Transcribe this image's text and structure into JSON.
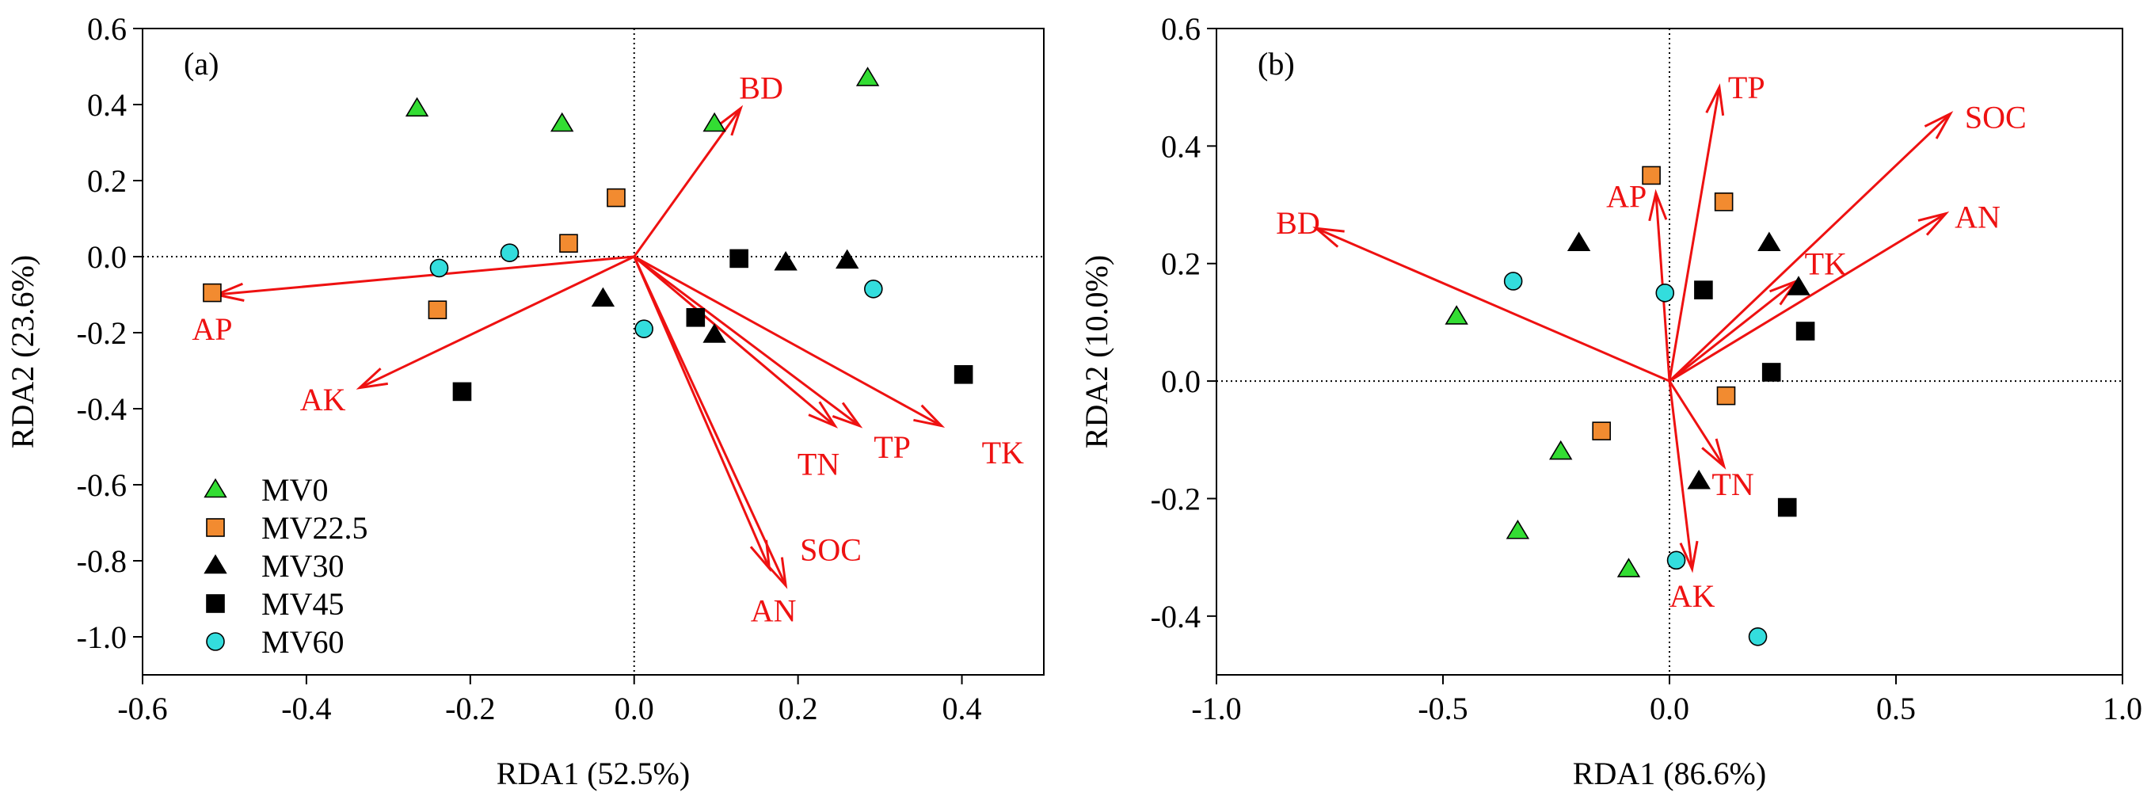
{
  "chart_data": [
    {
      "type": "scatter",
      "panel_label": "(a)",
      "xlabel": "RDA1 (52.5%)",
      "ylabel": "RDA2 (23.6%)",
      "xlim": [
        -0.6,
        0.5
      ],
      "ylim": [
        -1.1,
        0.6
      ],
      "xticks": [
        -0.6,
        -0.4,
        -0.2,
        0.0,
        0.2,
        0.4
      ],
      "yticks": [
        0.6,
        0.4,
        0.2,
        0.0,
        -0.2,
        -0.4,
        -0.6,
        -0.8,
        -1.0
      ],
      "xtick_labels": [
        "-0.6",
        "-0.4",
        "-0.2",
        "0.0",
        "0.2",
        "0.4"
      ],
      "ytick_labels": [
        "0.6",
        "0.4",
        "0.2",
        "0.0",
        "-0.2",
        "-0.4",
        "-0.6",
        "-0.8",
        "-1.0"
      ],
      "grid": false,
      "reference_lines": "dotted lines at x=0 and y=0",
      "legend_position": "bottom-left",
      "series": [
        {
          "name": "MV0",
          "marker": "triangle",
          "color": "#33dd33",
          "points": [
            [
              -0.265,
              0.39
            ],
            [
              -0.088,
              0.35
            ],
            [
              0.098,
              0.35
            ],
            [
              0.285,
              0.47
            ]
          ]
        },
        {
          "name": "MV22.5",
          "marker": "square",
          "color": "#f28b30",
          "points": [
            [
              -0.022,
              0.155
            ],
            [
              -0.08,
              0.035
            ],
            [
              -0.515,
              -0.095
            ],
            [
              -0.24,
              -0.14
            ]
          ]
        },
        {
          "name": "MV30",
          "marker": "triangle",
          "color": "#000000",
          "points": [
            [
              -0.038,
              -0.11
            ],
            [
              0.185,
              -0.015
            ],
            [
              0.26,
              -0.01
            ],
            [
              0.098,
              -0.205
            ]
          ]
        },
        {
          "name": "MV45",
          "marker": "square",
          "color": "#000000",
          "points": [
            [
              0.128,
              -0.005
            ],
            [
              0.075,
              -0.16
            ],
            [
              -0.21,
              -0.355
            ],
            [
              0.402,
              -0.31
            ]
          ]
        },
        {
          "name": "MV60",
          "marker": "circle",
          "color": "#33dddd",
          "points": [
            [
              -0.238,
              -0.03
            ],
            [
              -0.152,
              0.01
            ],
            [
              0.012,
              -0.19
            ],
            [
              0.292,
              -0.085
            ]
          ]
        }
      ],
      "vectors": [
        {
          "name": "BD",
          "x": 0.13,
          "y": 0.39,
          "label_x": 0.155,
          "label_y": 0.445
        },
        {
          "name": "AP",
          "x": -0.51,
          "y": -0.1,
          "label_x": -0.515,
          "label_y": -0.19
        },
        {
          "name": "AK",
          "x": -0.335,
          "y": -0.345,
          "label_x": -0.38,
          "label_y": -0.375
        },
        {
          "name": "TN",
          "x": 0.245,
          "y": -0.445,
          "label_x": 0.225,
          "label_y": -0.545
        },
        {
          "name": "TP",
          "x": 0.275,
          "y": -0.445,
          "label_x": 0.315,
          "label_y": -0.5
        },
        {
          "name": "TK",
          "x": 0.375,
          "y": -0.445,
          "label_x": 0.45,
          "label_y": -0.515
        },
        {
          "name": "SOC",
          "x": 0.165,
          "y": -0.82,
          "label_x": 0.24,
          "label_y": -0.77
        },
        {
          "name": "AN",
          "x": 0.185,
          "y": -0.865,
          "label_x": 0.17,
          "label_y": -0.93
        }
      ]
    },
    {
      "type": "scatter",
      "panel_label": "(b)",
      "xlabel": "RDA1 (86.6%)",
      "ylabel": "RDA2 (10.0%)",
      "xlim": [
        -1.0,
        1.0
      ],
      "ylim": [
        -0.5,
        0.6
      ],
      "xticks": [
        -1.0,
        -0.5,
        0.0,
        0.5,
        1.0
      ],
      "yticks": [
        0.6,
        0.4,
        0.2,
        0.0,
        -0.2,
        -0.4
      ],
      "xtick_labels": [
        "-1.0",
        "-0.5",
        "0.0",
        "0.5",
        "1.0"
      ],
      "ytick_labels": [
        "0.6",
        "0.4",
        "0.2",
        "0.0",
        "-0.2",
        "-0.4"
      ],
      "grid": false,
      "reference_lines": "dotted lines at x=0 and y=0",
      "series": [
        {
          "name": "MV0",
          "marker": "triangle",
          "color": "#33dd33",
          "points": [
            [
              -0.47,
              0.11
            ],
            [
              -0.24,
              -0.12
            ],
            [
              -0.335,
              -0.255
            ],
            [
              -0.09,
              -0.32
            ]
          ]
        },
        {
          "name": "MV22.5",
          "marker": "square",
          "color": "#f28b30",
          "points": [
            [
              -0.04,
              0.35
            ],
            [
              0.12,
              0.305
            ],
            [
              0.125,
              -0.025
            ],
            [
              -0.15,
              -0.085
            ]
          ]
        },
        {
          "name": "MV30",
          "marker": "triangle",
          "color": "#000000",
          "points": [
            [
              -0.2,
              0.235
            ],
            [
              0.22,
              0.235
            ],
            [
              0.285,
              0.16
            ],
            [
              0.065,
              -0.17
            ]
          ]
        },
        {
          "name": "MV45",
          "marker": "square",
          "color": "#000000",
          "points": [
            [
              0.075,
              0.155
            ],
            [
              0.3,
              0.085
            ],
            [
              0.225,
              0.015
            ],
            [
              0.26,
              -0.215
            ]
          ]
        },
        {
          "name": "MV60",
          "marker": "circle",
          "color": "#33dddd",
          "points": [
            [
              -0.345,
              0.17
            ],
            [
              -0.01,
              0.15
            ],
            [
              0.015,
              -0.305
            ],
            [
              0.195,
              -0.435
            ]
          ]
        }
      ],
      "vectors": [
        {
          "name": "TP",
          "x": 0.11,
          "y": 0.5,
          "label_x": 0.17,
          "label_y": 0.5
        },
        {
          "name": "SOC",
          "x": 0.62,
          "y": 0.455,
          "label_x": 0.72,
          "label_y": 0.45
        },
        {
          "name": "AN",
          "x": 0.61,
          "y": 0.285,
          "label_x": 0.68,
          "label_y": 0.28
        },
        {
          "name": "TK",
          "x": 0.28,
          "y": 0.17,
          "label_x": 0.345,
          "label_y": 0.2
        },
        {
          "name": "AP",
          "x": -0.03,
          "y": 0.32,
          "label_x": -0.095,
          "label_y": 0.315
        },
        {
          "name": "BD",
          "x": -0.78,
          "y": 0.26,
          "label_x": -0.82,
          "label_y": 0.27
        },
        {
          "name": "TN",
          "x": 0.12,
          "y": -0.145,
          "label_x": 0.14,
          "label_y": -0.175
        },
        {
          "name": "AK",
          "x": 0.05,
          "y": -0.32,
          "label_x": 0.05,
          "label_y": -0.365
        }
      ]
    }
  ]
}
